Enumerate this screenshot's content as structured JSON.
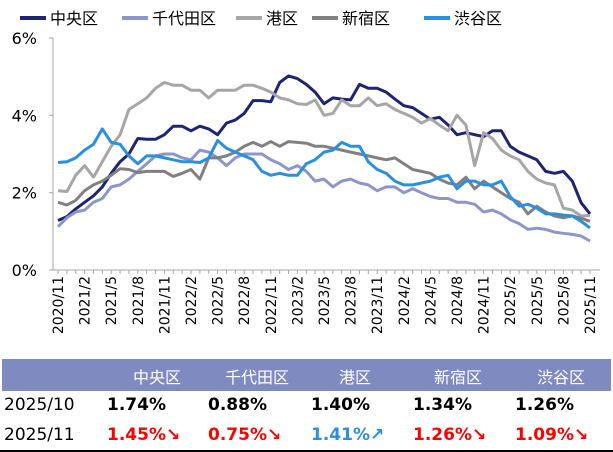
{
  "chart_data": {
    "type": "line",
    "ylim": [
      0,
      6
    ],
    "y_ticks": [
      "0%",
      "2%",
      "4%",
      "6%"
    ],
    "x_start": "2020/11",
    "x_end": "2025/11",
    "x_tick_labels": [
      "2020/11",
      "2021/2",
      "2021/5",
      "2021/8",
      "2021/11",
      "2022/2",
      "2022/5",
      "2022/8",
      "2022/11",
      "2023/2",
      "2023/5",
      "2023/8",
      "2023/11",
      "2024/2",
      "2024/5",
      "2024/8",
      "2024/11",
      "2025/2",
      "2025/5",
      "2025/8",
      "2025/11"
    ],
    "grid": false,
    "legend_position": "top",
    "series": [
      {
        "name": "中央区",
        "color": "#1F2470",
        "values": [
          1.28,
          1.38,
          1.58,
          1.75,
          1.92,
          2.15,
          2.5,
          2.8,
          3.0,
          3.4,
          3.38,
          3.38,
          3.5,
          3.72,
          3.72,
          3.6,
          3.72,
          3.65,
          3.5,
          3.8,
          3.88,
          4.05,
          4.38,
          4.38,
          4.35,
          4.85,
          5.02,
          4.95,
          4.8,
          4.6,
          4.3,
          4.45,
          4.42,
          4.4,
          4.8,
          4.7,
          4.7,
          4.6,
          4.42,
          4.25,
          4.2,
          4.05,
          3.9,
          3.95,
          3.75,
          3.5,
          3.55,
          3.5,
          3.45,
          3.6,
          3.6,
          3.2,
          3.05,
          2.95,
          2.85,
          2.55,
          2.5,
          2.55,
          2.3,
          1.74,
          1.45
        ]
      },
      {
        "name": "千代田区",
        "color": "#8E95C8",
        "values": [
          1.12,
          1.35,
          1.5,
          1.55,
          1.75,
          1.85,
          2.15,
          2.2,
          2.35,
          2.55,
          2.75,
          2.95,
          3.0,
          3.0,
          2.9,
          2.85,
          3.1,
          3.05,
          2.9,
          2.7,
          2.9,
          3.0,
          3.0,
          3.0,
          2.85,
          2.75,
          2.6,
          2.7,
          2.55,
          2.3,
          2.35,
          2.15,
          2.3,
          2.35,
          2.25,
          2.2,
          2.05,
          2.15,
          2.15,
          2.0,
          2.1,
          2.0,
          1.9,
          1.85,
          1.85,
          1.75,
          1.75,
          1.7,
          1.5,
          1.55,
          1.45,
          1.3,
          1.2,
          1.05,
          1.08,
          1.05,
          0.98,
          0.95,
          0.92,
          0.88,
          0.75
        ]
      },
      {
        "name": "港区",
        "color": "#A6A6A6",
        "values": [
          2.05,
          2.03,
          2.45,
          2.7,
          2.4,
          2.8,
          3.2,
          3.5,
          4.15,
          4.3,
          4.45,
          4.7,
          4.85,
          4.78,
          4.78,
          4.65,
          4.65,
          4.45,
          4.65,
          4.65,
          4.65,
          4.78,
          4.78,
          4.7,
          4.6,
          4.45,
          4.4,
          4.3,
          4.28,
          4.4,
          4.0,
          4.05,
          4.4,
          4.25,
          4.25,
          4.45,
          4.25,
          4.3,
          4.15,
          4.05,
          3.95,
          3.8,
          3.92,
          3.75,
          3.6,
          4.0,
          3.75,
          2.7,
          3.55,
          3.4,
          3.1,
          2.95,
          2.85,
          2.55,
          2.35,
          2.25,
          2.2,
          1.6,
          1.55,
          1.4,
          1.41
        ]
      },
      {
        "name": "新宿区",
        "color": "#808080",
        "values": [
          1.75,
          1.68,
          1.8,
          2.05,
          2.2,
          2.3,
          2.45,
          2.62,
          2.6,
          2.52,
          2.55,
          2.55,
          2.55,
          2.42,
          2.5,
          2.6,
          2.35,
          2.9,
          2.9,
          2.95,
          3.05,
          3.2,
          3.3,
          3.2,
          3.32,
          3.2,
          3.32,
          3.3,
          3.28,
          3.2,
          3.2,
          3.15,
          3.1,
          3.05,
          3.0,
          2.95,
          2.9,
          2.85,
          2.9,
          2.75,
          2.6,
          2.55,
          2.5,
          2.35,
          2.25,
          2.2,
          2.4,
          2.1,
          2.3,
          2.15,
          2.0,
          1.85,
          1.75,
          1.45,
          1.65,
          1.5,
          1.4,
          1.35,
          1.4,
          1.34,
          1.26
        ]
      },
      {
        "name": "渋谷区",
        "color": "#2B8FE0",
        "values": [
          2.78,
          2.8,
          2.9,
          3.1,
          3.25,
          3.65,
          3.3,
          3.25,
          2.95,
          2.75,
          2.95,
          2.95,
          2.9,
          2.85,
          2.8,
          2.8,
          2.78,
          2.9,
          3.35,
          3.15,
          3.05,
          2.95,
          2.85,
          2.55,
          2.45,
          2.5,
          2.45,
          2.45,
          2.75,
          2.85,
          3.05,
          3.1,
          3.3,
          3.2,
          3.2,
          2.8,
          2.6,
          2.5,
          2.3,
          2.2,
          2.2,
          2.25,
          2.3,
          2.4,
          2.45,
          2.1,
          2.3,
          2.3,
          2.2,
          2.2,
          2.3,
          1.9,
          1.65,
          1.7,
          1.6,
          1.45,
          1.45,
          1.42,
          1.4,
          1.26,
          1.09
        ]
      }
    ]
  },
  "table": {
    "headers": [
      "中央区",
      "千代田区",
      "港区",
      "新宿区",
      "渋谷区"
    ],
    "rows": [
      {
        "label": "2025/10",
        "values": [
          "1.74%",
          "0.88%",
          "1.40%",
          "1.34%",
          "1.26%"
        ],
        "colors": [
          "#000000",
          "#000000",
          "#000000",
          "#000000",
          "#000000"
        ]
      },
      {
        "label": "2025/11",
        "values": [
          "1.45%↘",
          "0.75%↘",
          "1.41%↗",
          "1.26%↘",
          "1.09%↘"
        ],
        "colors": [
          "#FF0000",
          "#FF0000",
          "#2B8FE0",
          "#FF0000",
          "#FF0000"
        ]
      }
    ]
  }
}
